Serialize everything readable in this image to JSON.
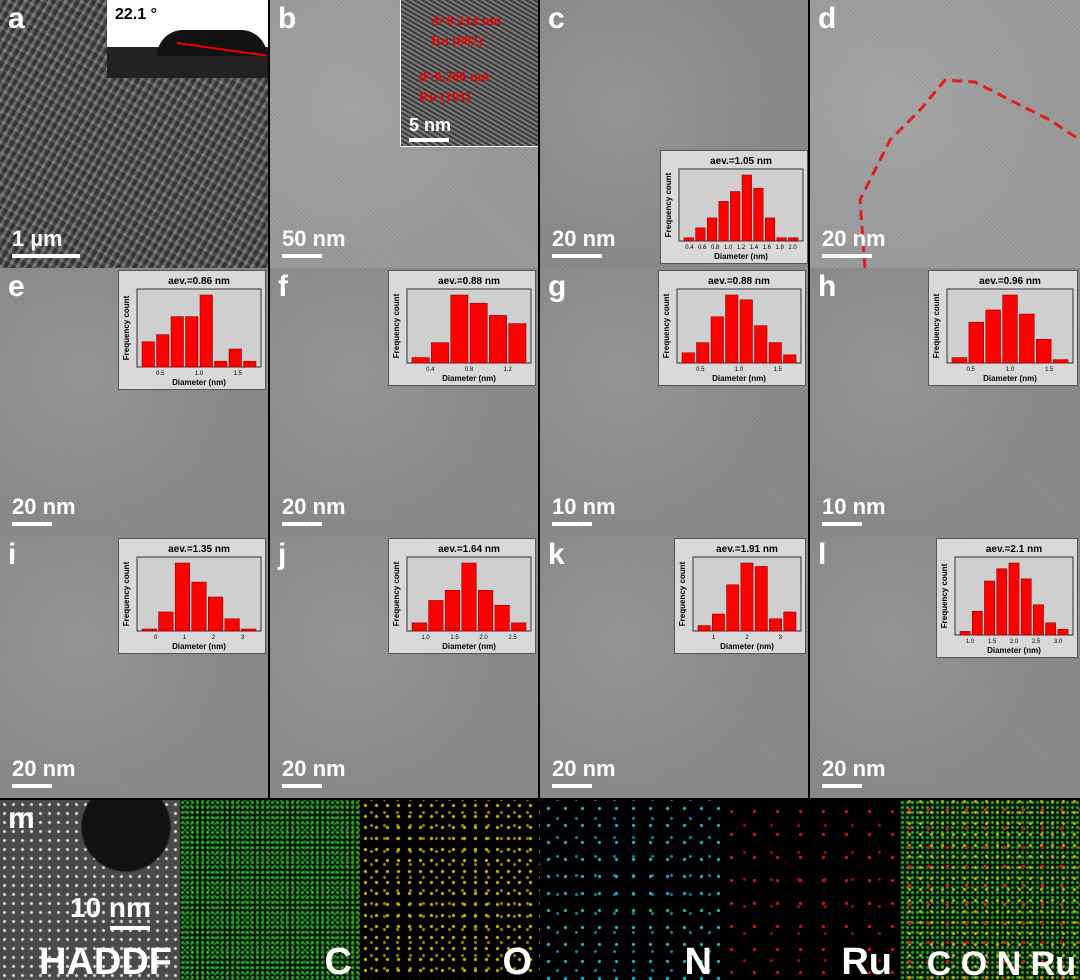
{
  "panels": {
    "a": {
      "label": "a",
      "scale": "1 µm",
      "angle": "22.1 °"
    },
    "b": {
      "label": "b",
      "scale": "50 nm",
      "inset_scale": "5 nm",
      "fringe1": "d=0.214 nm",
      "fringe1b": "Ru (002)",
      "fringe2": "d=0.206 nm",
      "fringe2b": "Ru (101)"
    },
    "c": {
      "label": "c",
      "scale": "20 nm"
    },
    "d": {
      "label": "d",
      "scale": "20 nm"
    },
    "e": {
      "label": "e",
      "scale": "20 nm"
    },
    "f": {
      "label": "f",
      "scale": "20 nm"
    },
    "g": {
      "label": "g",
      "scale": "10 nm"
    },
    "h": {
      "label": "h",
      "scale": "10 nm"
    },
    "i": {
      "label": "i",
      "scale": "20 nm"
    },
    "j": {
      "label": "j",
      "scale": "20 nm"
    },
    "k": {
      "label": "k",
      "scale": "20 nm"
    },
    "l": {
      "label": "l",
      "scale": "20 nm"
    },
    "m": {
      "label": "m",
      "scale": "10 nm"
    }
  },
  "element_maps": {
    "haadf": "HADDF",
    "c": "C",
    "o": "O",
    "n": "N",
    "ru": "Ru",
    "merge": "C O N Ru"
  },
  "colors": {
    "bar": "#ff0000",
    "c": "#2ea82e",
    "o": "#c8b400",
    "n": "#1fb6c8",
    "ru": "#e01010"
  },
  "chart_data": [
    {
      "type": "bar",
      "panel": "c",
      "title": "aev.=1.05 nm",
      "xlabel": "Diameter (nm)",
      "ylabel": "Frequency count",
      "xticks": [
        "0.4",
        "0.6",
        "0.8",
        "1.0",
        "1.2",
        "1.4",
        "1.6",
        "1.8",
        "2.0"
      ],
      "values": [
        0.05,
        0.2,
        0.35,
        0.6,
        0.75,
        1.0,
        0.8,
        0.35,
        0.05,
        0.05
      ]
    },
    {
      "type": "bar",
      "panel": "e",
      "title": "aev.=0.86 nm",
      "xlabel": "Diameter (nm)",
      "ylabel": "Frequency count",
      "xticks": [
        "0.5",
        "1.0",
        "1.5"
      ],
      "values": [
        0.35,
        0.45,
        0.7,
        0.7,
        1.0,
        0.08,
        0.25,
        0.08
      ]
    },
    {
      "type": "bar",
      "panel": "f",
      "title": "aev.=0.88 nm",
      "xlabel": "Diameter (nm)",
      "ylabel": "Frequency count",
      "xticks": [
        "0.4",
        "0.8",
        "1.2"
      ],
      "values": [
        0.08,
        0.3,
        1.0,
        0.88,
        0.7,
        0.58
      ]
    },
    {
      "type": "bar",
      "panel": "g",
      "title": "aev.=0.88 nm",
      "xlabel": "Diameter (nm)",
      "ylabel": "Frequency count",
      "xticks": [
        "0.5",
        "1.0",
        "1.5"
      ],
      "values": [
        0.15,
        0.3,
        0.68,
        1.0,
        0.93,
        0.55,
        0.3,
        0.12
      ]
    },
    {
      "type": "bar",
      "panel": "h",
      "title": "aev.=0.96 nm",
      "xlabel": "Diameter (nm)",
      "ylabel": "Frequency count",
      "xticks": [
        "0.5",
        "1.0",
        "1.5"
      ],
      "values": [
        0.08,
        0.6,
        0.78,
        1.0,
        0.72,
        0.35,
        0.05
      ]
    },
    {
      "type": "bar",
      "panel": "i",
      "title": "aev.=1.35 nm",
      "xlabel": "Diameter (nm)",
      "ylabel": "Frequency count",
      "xticks": [
        "0",
        "1",
        "2",
        "3"
      ],
      "values": [
        0.03,
        0.28,
        1.0,
        0.72,
        0.5,
        0.18,
        0.03
      ]
    },
    {
      "type": "bar",
      "panel": "j",
      "title": "aev.=1.64 nm",
      "xlabel": "Diameter (nm)",
      "ylabel": "Frequency count",
      "xticks": [
        "1.0",
        "1.5",
        "2.0",
        "2.5"
      ],
      "values": [
        0.12,
        0.45,
        0.6,
        1.0,
        0.6,
        0.38,
        0.12
      ]
    },
    {
      "type": "bar",
      "panel": "k",
      "title": "aev.=1.91 nm",
      "xlabel": "Diameter (nm)",
      "ylabel": "Frequency count",
      "xticks": [
        "1",
        "2",
        "3"
      ],
      "values": [
        0.08,
        0.25,
        0.68,
        1.0,
        0.95,
        0.18,
        0.28
      ]
    },
    {
      "type": "bar",
      "panel": "l",
      "title": "aev.=2.1 nm",
      "xlabel": "Diameter (nm)",
      "ylabel": "Frequency count",
      "xticks": [
        "1.0",
        "1.5",
        "2.0",
        "2.5",
        "3.0"
      ],
      "values": [
        0.05,
        0.33,
        0.75,
        0.92,
        1.0,
        0.78,
        0.42,
        0.17,
        0.08
      ]
    }
  ]
}
